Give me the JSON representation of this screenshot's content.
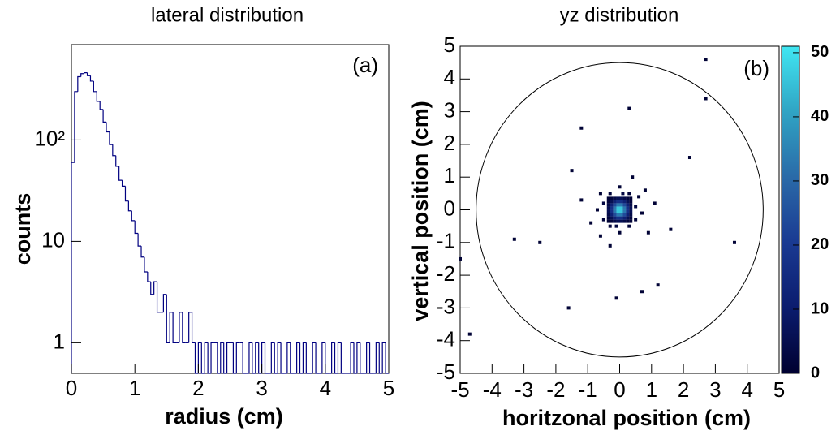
{
  "chart_data": [
    {
      "type": "histogram",
      "title": "lateral distribution",
      "annotation": "(a)",
      "xlabel": "radius (cm)",
      "ylabel": "counts",
      "color": "#000080",
      "log_y": true,
      "bins": [
        0,
        0.05,
        0.1,
        0.15,
        0.2,
        0.25,
        0.3,
        0.35,
        0.4,
        0.45,
        0.5,
        0.55,
        0.6,
        0.65,
        0.7,
        0.75,
        0.8,
        0.85,
        0.9,
        0.95,
        1,
        1.05,
        1.1,
        1.15,
        1.2,
        1.25,
        1.3,
        1.35,
        1.4,
        1.45,
        1.5,
        1.55,
        1.6,
        1.65,
        1.7,
        1.75,
        1.8,
        1.85,
        1.9,
        1.95,
        2,
        2.05,
        2.1,
        2.15,
        2.2,
        2.25,
        2.3,
        2.35,
        2.4,
        2.45,
        2.5,
        2.55,
        2.6,
        2.65,
        2.7,
        2.75,
        2.8,
        2.85,
        2.9,
        2.95,
        3,
        3.05,
        3.1,
        3.15,
        3.2,
        3.25,
        3.3,
        3.35,
        3.4,
        3.45,
        3.5,
        3.55,
        3.6,
        3.65,
        3.7,
        3.75,
        3.8,
        3.85,
        3.9,
        3.95,
        4,
        4.05,
        4.1,
        4.15,
        4.2,
        4.25,
        4.3,
        4.35,
        4.4,
        4.45,
        4.5,
        4.55,
        4.6,
        4.65,
        4.7,
        4.75,
        4.8,
        4.85,
        4.9,
        4.95,
        5
      ],
      "values": [
        60,
        300,
        420,
        450,
        460,
        430,
        380,
        300,
        240,
        200,
        150,
        120,
        90,
        70,
        55,
        40,
        35,
        25,
        20,
        16,
        12,
        9,
        7,
        5,
        4,
        3,
        4,
        2,
        2,
        3,
        1,
        2,
        1,
        1,
        2,
        1,
        1,
        2,
        1,
        0,
        1,
        0,
        1,
        0,
        1,
        1,
        0,
        1,
        0,
        1,
        1,
        0,
        1,
        1,
        0,
        0,
        1,
        0,
        1,
        0,
        1,
        0,
        0,
        1,
        0,
        1,
        0,
        0,
        1,
        0,
        0,
        1,
        0,
        1,
        0,
        0,
        1,
        0,
        0,
        1,
        0,
        0,
        1,
        0,
        1,
        0,
        0,
        0,
        1,
        0,
        1,
        0,
        0,
        1,
        0,
        0,
        1,
        0,
        1,
        0
      ],
      "xlim": [
        0,
        5
      ],
      "xticks": [
        0,
        1,
        2,
        3,
        4,
        5
      ],
      "ylim": [
        0.5,
        870
      ],
      "yticks": [
        1,
        10,
        {
          "value": 100,
          "label": "10²"
        }
      ]
    },
    {
      "type": "heatmap",
      "title": "yz distribution",
      "annotation": "(b)",
      "xlabel": "horitzonal position (cm)",
      "ylabel": "vertical position (cm)",
      "xlim": [
        -5,
        5
      ],
      "xticks": [
        -5,
        -4,
        -3,
        -2,
        -1,
        0,
        1,
        2,
        3,
        4,
        5
      ],
      "ylim": [
        -5,
        5
      ],
      "yticks": [
        -5,
        -4,
        -3,
        -2,
        -1,
        0,
        1,
        2,
        3,
        4,
        5
      ],
      "circle_radius": 4.5,
      "zlim": [
        0,
        51
      ],
      "zticks": [
        0,
        10,
        20,
        30,
        40,
        50
      ],
      "colors": [
        "#000030",
        "#0b1c6e",
        "#1a3a92",
        "#2a6aa8",
        "#30a4c4",
        "#40e6f2"
      ],
      "x": [
        -0.35,
        -0.25,
        -0.15,
        -0.05,
        0.05,
        0.15,
        0.25,
        0.35,
        -0.35,
        -0.25,
        -0.15,
        -0.05,
        0.05,
        0.15,
        0.25,
        0.35,
        -0.35,
        -0.25,
        -0.15,
        -0.05,
        0.05,
        0.15,
        0.25,
        0.35,
        -0.35,
        -0.25,
        -0.15,
        -0.05,
        0.05,
        0.15,
        0.25,
        0.35,
        -0.35,
        -0.25,
        -0.15,
        -0.05,
        0.05,
        0.15,
        0.25,
        0.35,
        -0.35,
        -0.25,
        -0.15,
        -0.05,
        0.05,
        0.15,
        0.25,
        0.35,
        -0.35,
        -0.25,
        -0.15,
        -0.05,
        0.05,
        0.15,
        0.25,
        0.35,
        -0.35,
        -0.25,
        -0.15,
        -0.05,
        0.05,
        0.15,
        0.25,
        0.35,
        0.5,
        -0.5,
        0.1,
        -0.1,
        0.5,
        -0.5,
        0.3,
        -0.3,
        0.3,
        -0.3,
        0.6,
        -0.6,
        0.7,
        -0.7,
        0,
        0,
        0.8,
        -0.9,
        0.9,
        -0.6,
        1.1,
        -1.2,
        0.4,
        -0.3,
        1.6,
        -1.5,
        0.3,
        -1.2,
        2.2,
        -2.5,
        1.2,
        -1.6,
        2.7,
        2.7,
        -4.7,
        -5,
        3.6,
        -3.3,
        -0.1,
        0.7
      ],
      "y": [
        -0.35,
        -0.35,
        -0.35,
        -0.35,
        -0.35,
        -0.35,
        -0.35,
        -0.35,
        -0.25,
        -0.25,
        -0.25,
        -0.25,
        -0.25,
        -0.25,
        -0.25,
        -0.25,
        -0.15,
        -0.15,
        -0.15,
        -0.15,
        -0.15,
        -0.15,
        -0.15,
        -0.15,
        -0.05,
        -0.05,
        -0.05,
        -0.05,
        -0.05,
        -0.05,
        -0.05,
        -0.05,
        0.05,
        0.05,
        0.05,
        0.05,
        0.05,
        0.05,
        0.05,
        0.05,
        0.15,
        0.15,
        0.15,
        0.15,
        0.15,
        0.15,
        0.15,
        0.15,
        0.25,
        0.25,
        0.25,
        0.25,
        0.25,
        0.25,
        0.25,
        0.25,
        0.35,
        0.35,
        0.35,
        0.35,
        0.35,
        0.35,
        0.35,
        0.35,
        0.1,
        0.2,
        0.5,
        -0.5,
        -0.3,
        -0.3,
        0.5,
        0.5,
        -0.5,
        -0.5,
        0.4,
        0.5,
        -0.1,
        0,
        0.7,
        -0.7,
        0.6,
        -0.4,
        -0.7,
        -0.8,
        0.2,
        0.3,
        1,
        -1.1,
        -0.6,
        1.2,
        3.1,
        2.5,
        1.6,
        -1,
        -2.3,
        -3,
        4.6,
        3.4,
        -3.8,
        -1.5,
        -1,
        -0.9,
        -2.7,
        -2.5
      ],
      "values": [
        1,
        2,
        4,
        6,
        6,
        4,
        2,
        1,
        2,
        6,
        12,
        17,
        17,
        12,
        6,
        2,
        4,
        12,
        24,
        33,
        33,
        24,
        12,
        4,
        6,
        17,
        33,
        46,
        46,
        33,
        17,
        6,
        6,
        17,
        33,
        46,
        46,
        33,
        17,
        6,
        4,
        12,
        24,
        33,
        33,
        24,
        12,
        4,
        2,
        6,
        12,
        17,
        17,
        12,
        6,
        2,
        1,
        2,
        4,
        6,
        6,
        4,
        2,
        1,
        3,
        3,
        3,
        3,
        2,
        2,
        2,
        2,
        2,
        2,
        1,
        1,
        1,
        1,
        1,
        1,
        1,
        1,
        1,
        1,
        1,
        1,
        1,
        1,
        1,
        1,
        1,
        1,
        1,
        1,
        1,
        1,
        1,
        1,
        1,
        1,
        1,
        1,
        1,
        1
      ]
    }
  ]
}
